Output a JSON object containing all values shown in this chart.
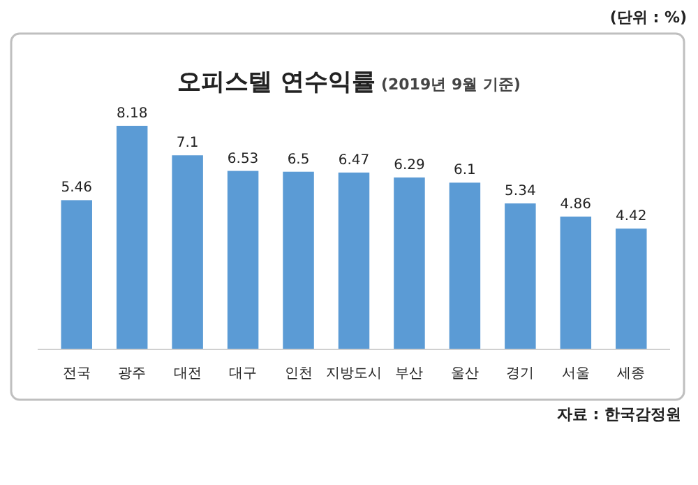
{
  "chart_data": {
    "type": "bar",
    "title": "오피스텔 연수익률",
    "subtitle": "(2019년 9월 기준)",
    "categories": [
      "전국",
      "광주",
      "대전",
      "대구",
      "인천",
      "지방도시",
      "부산",
      "울산",
      "경기",
      "서울",
      "세종"
    ],
    "values": [
      5.46,
      8.18,
      7.1,
      6.53,
      6.5,
      6.47,
      6.29,
      6.1,
      5.34,
      4.86,
      4.42
    ],
    "color": "#5b9bd5",
    "data_labels": true,
    "annotations": [
      "(단위 : %)",
      "자료 : 한국감정원"
    ]
  }
}
